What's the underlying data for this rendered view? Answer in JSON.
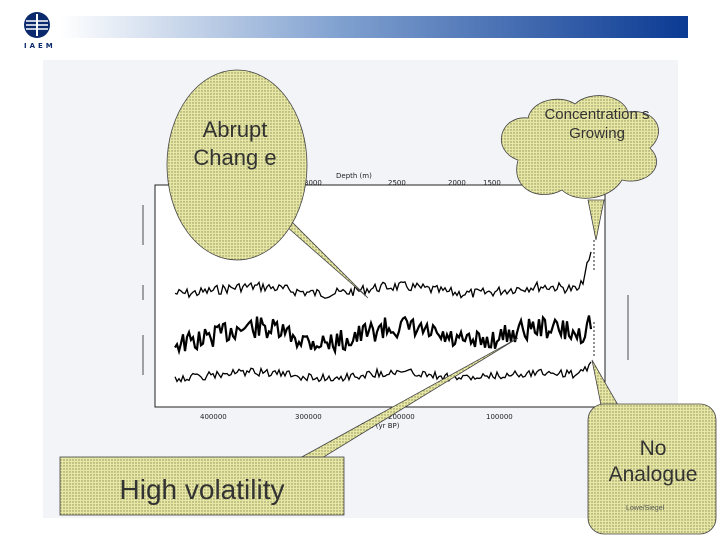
{
  "logo": {
    "icon": "institute-logo-icon",
    "text": "IAEM"
  },
  "header": {
    "gradient_start": "#ffffff",
    "gradient_end": "#0b3a93"
  },
  "figure": {
    "top_axis_label": "Depth (m)",
    "top_axis_ticks": [
      "3000",
      "2500",
      "2000",
      "1500"
    ],
    "bottom_axis_label": "Age (yr BP)",
    "bottom_axis_ticks": [
      "400000",
      "300000",
      "200000",
      "100000"
    ]
  },
  "callouts": {
    "abrupt_change": "Abrupt Chang e",
    "concentrations": "Concentration s Growing",
    "high_volatility": "High volatility",
    "no_analogue": "No Analogue"
  },
  "footnote": "Lowe/Siegel"
}
